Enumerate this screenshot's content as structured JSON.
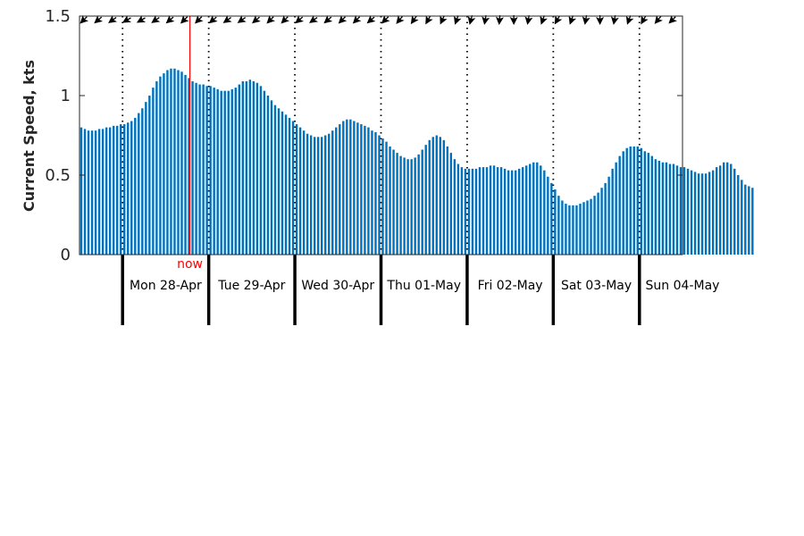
{
  "chart_data": {
    "type": "bar",
    "ylabel": "Current Speed, kts",
    "ylim": [
      0,
      1.5
    ],
    "yticks": [
      {
        "value": 0,
        "label": "0"
      },
      {
        "value": 0.5,
        "label": "0.5"
      },
      {
        "value": 1,
        "label": "1"
      },
      {
        "value": 1.5,
        "label": "1.5"
      }
    ],
    "x_range_hours": [
      -12,
      156
    ],
    "day_labels": [
      "Mon 28-Apr",
      "Tue 29-Apr",
      "Wed 30-Apr",
      "Thu 01-May",
      "Fri 02-May",
      "Sat 03-May",
      "Sun 04-May"
    ],
    "now": {
      "label": "now",
      "hour": 18.75,
      "color": "#ff0000"
    },
    "bar_color": "#0072bd",
    "hours_per_bar": 1,
    "values": [
      0.8,
      0.79,
      0.78,
      0.78,
      0.78,
      0.79,
      0.79,
      0.8,
      0.8,
      0.81,
      0.81,
      0.82,
      0.82,
      0.83,
      0.84,
      0.86,
      0.89,
      0.92,
      0.96,
      1.0,
      1.05,
      1.09,
      1.12,
      1.14,
      1.16,
      1.17,
      1.17,
      1.16,
      1.15,
      1.13,
      1.11,
      1.09,
      1.08,
      1.07,
      1.07,
      1.06,
      1.06,
      1.05,
      1.04,
      1.03,
      1.03,
      1.03,
      1.04,
      1.05,
      1.07,
      1.09,
      1.09,
      1.1,
      1.09,
      1.08,
      1.06,
      1.03,
      1.0,
      0.97,
      0.94,
      0.92,
      0.9,
      0.88,
      0.86,
      0.84,
      0.82,
      0.8,
      0.78,
      0.76,
      0.75,
      0.74,
      0.74,
      0.74,
      0.75,
      0.76,
      0.78,
      0.8,
      0.82,
      0.84,
      0.85,
      0.85,
      0.84,
      0.83,
      0.82,
      0.81,
      0.8,
      0.78,
      0.77,
      0.75,
      0.73,
      0.71,
      0.68,
      0.66,
      0.64,
      0.62,
      0.61,
      0.6,
      0.6,
      0.61,
      0.63,
      0.66,
      0.69,
      0.72,
      0.74,
      0.75,
      0.74,
      0.72,
      0.68,
      0.64,
      0.6,
      0.57,
      0.55,
      0.54,
      0.54,
      0.54,
      0.54,
      0.55,
      0.55,
      0.55,
      0.56,
      0.56,
      0.55,
      0.55,
      0.54,
      0.53,
      0.53,
      0.53,
      0.54,
      0.55,
      0.56,
      0.57,
      0.58,
      0.58,
      0.56,
      0.53,
      0.49,
      0.45,
      0.41,
      0.37,
      0.34,
      0.32,
      0.31,
      0.31,
      0.31,
      0.32,
      0.33,
      0.34,
      0.35,
      0.37,
      0.39,
      0.42,
      0.45,
      0.49,
      0.54,
      0.58,
      0.62,
      0.65,
      0.67,
      0.68,
      0.68,
      0.68,
      0.67,
      0.65,
      0.64,
      0.62,
      0.6,
      0.59,
      0.58,
      0.58,
      0.57,
      0.57,
      0.56,
      0.55,
      0.55,
      0.54,
      0.53,
      0.52,
      0.51,
      0.51,
      0.51,
      0.52,
      0.53,
      0.55,
      0.56,
      0.58,
      0.58,
      0.57,
      0.54,
      0.5,
      0.47,
      0.44,
      0.43,
      0.42
    ],
    "direction_arrows": [
      {
        "hour": -11,
        "angle": -45
      },
      {
        "hour": -7,
        "angle": -40
      },
      {
        "hour": -3,
        "angle": -35
      },
      {
        "hour": 1,
        "angle": -30
      },
      {
        "hour": 5,
        "angle": -30
      },
      {
        "hour": 9,
        "angle": -35
      },
      {
        "hour": 13,
        "angle": -40
      },
      {
        "hour": 17,
        "angle": -45
      },
      {
        "hour": 21,
        "angle": -45
      },
      {
        "hour": 25,
        "angle": -40
      },
      {
        "hour": 29,
        "angle": -35
      },
      {
        "hour": 33,
        "angle": -35
      },
      {
        "hour": 37,
        "angle": -40
      },
      {
        "hour": 41,
        "angle": -45
      },
      {
        "hour": 45,
        "angle": -45
      },
      {
        "hour": 49,
        "angle": -40
      },
      {
        "hour": 53,
        "angle": -35
      },
      {
        "hour": 57,
        "angle": -40
      },
      {
        "hour": 61,
        "angle": -45
      },
      {
        "hour": 65,
        "angle": -45
      },
      {
        "hour": 69,
        "angle": -40
      },
      {
        "hour": 73,
        "angle": -45
      },
      {
        "hour": 77,
        "angle": -50
      },
      {
        "hour": 81,
        "angle": -55
      },
      {
        "hour": 85,
        "angle": -60
      },
      {
        "hour": 89,
        "angle": -65
      },
      {
        "hour": 93,
        "angle": -70
      },
      {
        "hour": 97,
        "angle": -75
      },
      {
        "hour": 101,
        "angle": -80
      },
      {
        "hour": 105,
        "angle": -85
      },
      {
        "hour": 109,
        "angle": -90
      },
      {
        "hour": 113,
        "angle": -80
      },
      {
        "hour": 117,
        "angle": -70
      },
      {
        "hour": 121,
        "angle": -60
      },
      {
        "hour": 125,
        "angle": -70
      },
      {
        "hour": 129,
        "angle": -80
      },
      {
        "hour": 133,
        "angle": -90
      },
      {
        "hour": 137,
        "angle": -80
      },
      {
        "hour": 141,
        "angle": -70
      },
      {
        "hour": 145,
        "angle": -60
      },
      {
        "hour": 149,
        "angle": -50
      },
      {
        "hour": 153,
        "angle": -45
      }
    ]
  }
}
